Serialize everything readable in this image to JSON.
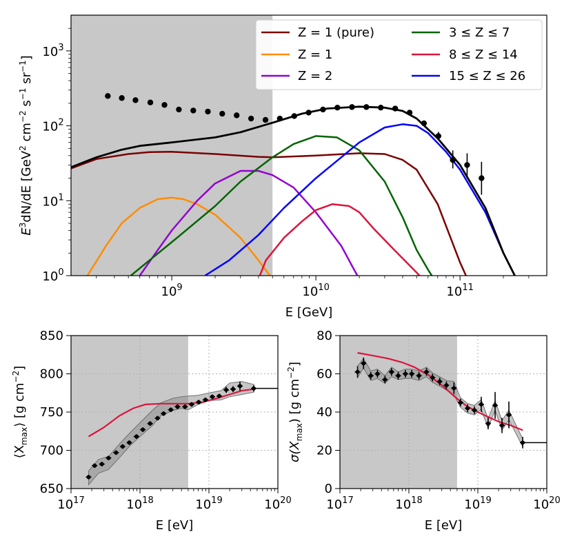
{
  "chart_data": [
    {
      "id": "spectrum",
      "type": "line",
      "xscale": "log",
      "yscale": "log",
      "xlim": [
        200000000,
        400000000000
      ],
      "ylim": [
        1,
        3000
      ],
      "xlabel": "E [GeV]",
      "ylabel": "E³dN/dE [GeV² cm⁻² s⁻¹ sr⁻¹]",
      "ylabel_parts": {
        "pre": "E",
        "sup1": "3",
        "mid": "dN/dE [GeV",
        "sup2": "2",
        "cm": " cm",
        "sup3": "−2",
        "s": " s",
        "sup4": "−1",
        "sr": " sr",
        "sup5": "−1",
        "end": "]"
      },
      "xticks": [
        {
          "value": 1000000000,
          "base": "10",
          "exp": "9"
        },
        {
          "value": 10000000000,
          "base": "10",
          "exp": "10"
        },
        {
          "value": 100000000000,
          "base": "10",
          "exp": "11"
        }
      ],
      "yticks": [
        {
          "value": 1,
          "base": "10",
          "exp": "0"
        },
        {
          "value": 10,
          "base": "10",
          "exp": "1"
        },
        {
          "value": 100,
          "base": "10",
          "exp": "2"
        },
        {
          "value": 1000,
          "base": "10",
          "exp": "3"
        }
      ],
      "shaded_region": [
        200000000,
        5000000000
      ],
      "legend": {
        "position": "top-right",
        "columns": 2
      },
      "series": [
        {
          "name": "Z = 1 (pure)",
          "label": "Z = 1 (pure)",
          "color": "#7a0000",
          "x": [
            200000000,
            300000000,
            500000000,
            700000000,
            1000000000,
            2000000000,
            4000000000,
            5000000000,
            10000000000,
            20000000000,
            30000000000,
            40000000000,
            50000000000,
            70000000000,
            100000000000,
            110000000000
          ],
          "y": [
            27,
            36,
            42,
            44.5,
            45,
            42,
            38.5,
            38,
            40,
            43,
            42,
            35,
            26,
            9,
            1.5,
            1
          ]
        },
        {
          "name": "Z = 1",
          "label": "Z = 1",
          "color": "#ff8c00",
          "x": [
            260000000,
            350000000,
            450000000,
            600000000,
            800000000,
            1000000000,
            1200000000,
            1500000000,
            2000000000,
            3000000000,
            4000000000,
            5000000000
          ],
          "y": [
            1,
            2.5,
            5,
            8,
            10.5,
            11,
            10.5,
            9,
            6.5,
            3.2,
            1.6,
            0.9
          ]
        },
        {
          "name": "Z = 2",
          "label": "Z = 2",
          "color": "#9400d3",
          "x": [
            600000000,
            800000000,
            1000000000,
            1500000000,
            2000000000,
            3000000000,
            4000000000,
            5000000000,
            7000000000,
            10000000000,
            15000000000,
            18000000000,
            20000000000
          ],
          "y": [
            1,
            2.2,
            4,
            10,
            17,
            25,
            25,
            22,
            15,
            7,
            2.5,
            1.3,
            0.9
          ]
        },
        {
          "name": "3 ≤ Z ≤ 7",
          "label": "3 ≤ Z ≤ 7",
          "color": "#006400",
          "x": [
            520000000,
            700000000,
            1000000000,
            2000000000,
            3000000000,
            5000000000,
            7000000000,
            10000000000,
            14000000000,
            20000000000,
            30000000000,
            40000000000,
            50000000000,
            60000000000,
            66000000000
          ],
          "y": [
            1,
            1.6,
            2.8,
            8.5,
            18,
            38,
            57,
            73,
            70,
            47,
            18,
            6,
            2.2,
            1.2,
            0.9
          ]
        },
        {
          "name": "8 ≤ Z ≤ 14",
          "label": "8 ≤ Z ≤ 14",
          "color": "#dc143c",
          "x": [
            4000000000,
            4500000000,
            6000000000,
            8000000000,
            10000000000,
            13000000000,
            17000000000,
            20000000000,
            25000000000,
            35000000000,
            50000000000,
            55000000000
          ],
          "y": [
            0.9,
            1.6,
            3.2,
            5.3,
            7.5,
            9,
            8.5,
            7,
            4.3,
            2.2,
            1.1,
            0.9
          ]
        },
        {
          "name": "15 ≤ Z ≤ 26",
          "label": "15 ≤ Z ≤ 26",
          "color": "#0000ff",
          "x": [
            1700000000,
            2500000000,
            4000000000,
            6000000000,
            10000000000,
            15000000000,
            20000000000,
            30000000000,
            40000000000,
            50000000000,
            60000000000,
            80000000000,
            100000000000,
            150000000000,
            200000000000,
            240000000000
          ],
          "y": [
            1,
            1.6,
            3.5,
            8,
            20,
            38,
            60,
            95,
            105,
            100,
            80,
            45,
            26,
            7,
            2,
            1
          ]
        },
        {
          "name": "total",
          "label": "",
          "color": "#000000",
          "x": [
            200000000,
            300000000,
            450000000,
            600000000,
            1000000000,
            2000000000,
            3000000000,
            5000000000,
            8000000000,
            12000000000,
            20000000000,
            30000000000,
            40000000000,
            50000000000,
            70000000000,
            100000000000,
            150000000000,
            200000000000,
            240000000000
          ],
          "y": [
            28,
            38,
            48,
            54,
            60,
            70,
            82,
            110,
            145,
            170,
            180,
            175,
            158,
            125,
            68,
            30,
            8,
            2,
            1
          ]
        }
      ],
      "points": {
        "name": "data",
        "color": "#000000",
        "x": [
          360000000,
          450000000,
          560000000,
          710000000,
          890000000,
          1120000000,
          1410000000,
          1780000000,
          2240000000,
          2820000000,
          3550000000,
          4470000000,
          5620000000,
          7080000000,
          8910000000,
          11200000000,
          14100000000,
          17800000000,
          22400000000,
          28200000000,
          35500000000,
          44700000000,
          56200000000,
          70800000000,
          89100000000,
          112000000000,
          141000000000
        ],
        "y": [
          250,
          235,
          220,
          205,
          190,
          165,
          160,
          155,
          145,
          138,
          125,
          120,
          125,
          135,
          150,
          165,
          175,
          178,
          178,
          175,
          170,
          150,
          108,
          73,
          35,
          30,
          20
        ],
        "err_low": [
          0,
          0,
          0,
          0,
          0,
          0,
          0,
          0,
          0,
          0,
          0,
          0,
          0,
          0,
          0,
          0,
          0,
          0,
          0,
          0,
          0,
          0,
          0,
          8,
          8,
          9,
          8
        ],
        "err_high": [
          0,
          0,
          0,
          0,
          0,
          0,
          0,
          0,
          0,
          0,
          0,
          0,
          0,
          0,
          0,
          0,
          0,
          0,
          0,
          0,
          0,
          0,
          0,
          10,
          12,
          13,
          13
        ]
      }
    },
    {
      "id": "xmax",
      "type": "line",
      "xscale": "log",
      "yscale": "linear",
      "xlim": [
        1e+17,
        1e+20
      ],
      "ylim": [
        650,
        850
      ],
      "xlabel": "E [eV]",
      "ylabel_parts": {
        "pre": "⟨X",
        "sub": "max",
        "post": "⟩ [g cm",
        "sup": "−2",
        "end": "]"
      },
      "xticks": [
        {
          "value": 1e+17,
          "base": "10",
          "exp": "17"
        },
        {
          "value": 1e+18,
          "base": "10",
          "exp": "18"
        },
        {
          "value": 1e+19,
          "base": "10",
          "exp": "19"
        },
        {
          "value": 1e+20,
          "base": "10",
          "exp": "20"
        }
      ],
      "yticks": [
        650,
        700,
        750,
        800,
        850
      ],
      "grid": true,
      "shaded_region": [
        1e+17,
        5e+18
      ],
      "model": {
        "color": "#dc143c",
        "x": [
          1.8e+17,
          3e+17,
          5e+17,
          8e+17,
          1.2e+18,
          2e+18,
          3e+18,
          5e+18,
          8e+18,
          1.2e+19,
          2e+19,
          3e+19,
          4.5e+19
        ],
        "y": [
          718,
          730,
          745,
          755,
          760,
          761,
          761,
          761,
          763,
          767,
          773,
          778,
          780
        ]
      },
      "band": {
        "x": [
          1.8e+17,
          2.5e+17,
          3.5e+17,
          5e+17,
          7e+17,
          1e+18,
          1.5e+18,
          2e+18,
          3e+18,
          4e+18,
          5e+18,
          7e+18,
          1e+19,
          1.5e+19,
          2e+19,
          3e+19,
          4.5e+19
        ],
        "low": [
          655,
          670,
          675,
          690,
          705,
          718,
          732,
          745,
          752,
          755,
          753,
          760,
          765,
          766,
          770,
          773,
          776
        ],
        "high": [
          673,
          688,
          692,
          708,
          722,
          736,
          752,
          762,
          768,
          770,
          771,
          772,
          775,
          778,
          788,
          790,
          786
        ]
      },
      "points": {
        "color": "#000000",
        "x": [
          1.8e+17,
          2.2e+17,
          2.8e+17,
          3.5e+17,
          4.5e+17,
          5.6e+17,
          7e+17,
          8.9e+17,
          1.1e+18,
          1.4e+18,
          1.8e+18,
          2.2e+18,
          2.8e+18,
          3.5e+18,
          4.5e+18,
          5.6e+18,
          7.1e+18,
          8.9e+18,
          1.12e+19,
          1.41e+19,
          1.78e+19,
          2.24e+19,
          2.82e+19,
          4.47e+19
        ],
        "y": [
          665,
          680,
          682,
          690,
          697,
          705,
          710,
          718,
          727,
          735,
          742,
          748,
          753,
          757,
          757,
          760,
          763,
          766,
          770,
          771,
          779,
          780,
          784,
          781
        ],
        "err": [
          3,
          3,
          3,
          3,
          3,
          3,
          3,
          3,
          3,
          3,
          3,
          3,
          3,
          3,
          3,
          3,
          3,
          3,
          3,
          3,
          4,
          4,
          6,
          4
        ]
      },
      "hline": {
        "y": 781,
        "x_from": 4.47e+19,
        "x_to": 1e+20
      }
    },
    {
      "id": "sigma",
      "type": "line",
      "xscale": "log",
      "yscale": "linear",
      "xlim": [
        1e+17,
        1e+20
      ],
      "ylim": [
        0,
        80
      ],
      "xlabel": "E [eV]",
      "ylabel_parts": {
        "pre": "σ(X",
        "sub": "max",
        "post": ") [g cm",
        "sup": "−2",
        "end": "]"
      },
      "xticks": [
        {
          "value": 1e+17,
          "base": "10",
          "exp": "17"
        },
        {
          "value": 1e+18,
          "base": "10",
          "exp": "18"
        },
        {
          "value": 1e+19,
          "base": "10",
          "exp": "19"
        },
        {
          "value": 1e+20,
          "base": "10",
          "exp": "20"
        }
      ],
      "yticks": [
        0,
        20,
        40,
        60,
        80
      ],
      "grid": true,
      "shaded_region": [
        1e+17,
        5e+18
      ],
      "model": {
        "color": "#dc143c",
        "x": [
          1.8e+17,
          3e+17,
          5e+17,
          8e+17,
          1.2e+18,
          2e+18,
          3e+18,
          5e+18,
          7e+18,
          1e+19,
          1.5e+19,
          2e+19,
          3e+19,
          4.5e+19
        ],
        "y": [
          71,
          69.5,
          68,
          66,
          63.5,
          59,
          54,
          47,
          43,
          40,
          37,
          35,
          33,
          30.5
        ]
      },
      "band": {
        "x": [
          1.8e+17,
          2.2e+17,
          2.8e+17,
          3.5e+17,
          4.5e+17,
          5.6e+17,
          7e+17,
          8.9e+17,
          1.1e+18,
          1.4e+18,
          1.8e+18,
          2.2e+18,
          2.8e+18,
          3.5e+18,
          4.5e+18,
          5.6e+18,
          7.1e+18,
          8.9e+18,
          1.12e+19,
          1.41e+19,
          1.78e+19,
          2.24e+19,
          2.82e+19,
          4.47e+19
        ],
        "low": [
          58,
          63,
          56.5,
          57.5,
          55,
          58.5,
          57,
          57.5,
          57.5,
          56.5,
          58.5,
          55.5,
          53.5,
          51.5,
          49,
          42.5,
          39.5,
          38.5,
          41.5,
          31.5,
          41,
          30.5,
          36,
          22
        ],
        "high": [
          64,
          68,
          61.5,
          62.5,
          59,
          63.5,
          61,
          62.5,
          62.5,
          61.5,
          63.5,
          60.5,
          58.5,
          56.5,
          56,
          47.5,
          44.5,
          43.5,
          46.5,
          36.5,
          46,
          35.5,
          41,
          26
        ]
      },
      "points": {
        "color": "#000000",
        "x": [
          1.8e+17,
          2.2e+17,
          2.8e+17,
          3.5e+17,
          4.5e+17,
          5.6e+17,
          7e+17,
          8.9e+17,
          1.1e+18,
          1.4e+18,
          1.8e+18,
          2.2e+18,
          2.8e+18,
          3.5e+18,
          4.5e+18,
          5.6e+18,
          7.1e+18,
          8.9e+18,
          1.12e+19,
          1.41e+19,
          1.78e+19,
          2.24e+19,
          2.82e+19,
          4.47e+19
        ],
        "y": [
          61,
          65.5,
          59,
          60,
          57,
          61,
          59,
          60,
          60,
          59,
          61,
          58,
          56,
          54,
          52.5,
          45,
          42,
          41,
          44,
          34,
          43.5,
          33,
          38.5,
          24
        ],
        "err": [
          3,
          3,
          2,
          2,
          2,
          2,
          2,
          2,
          2,
          2,
          2,
          2,
          2,
          2,
          3,
          2,
          2,
          2,
          4,
          3,
          7,
          4,
          7,
          3
        ]
      },
      "hline": {
        "y": 24,
        "x_from": 4.47e+19,
        "x_to": 1e+20
      }
    }
  ]
}
